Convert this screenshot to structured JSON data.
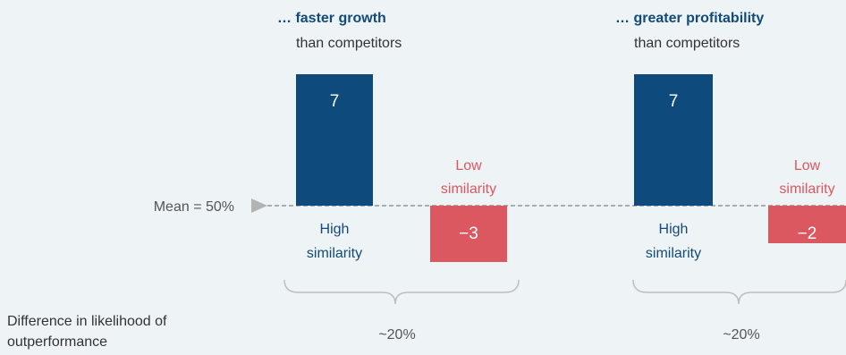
{
  "chart_data": [
    {
      "type": "bar",
      "title": "… faster growth",
      "subtitle": "than competitors",
      "categories": [
        "High similarity",
        "Low similarity"
      ],
      "category_lines": [
        [
          "High",
          "similarity"
        ],
        [
          "Low",
          "similarity"
        ]
      ],
      "values": [
        7,
        -3
      ],
      "value_labels": [
        "7",
        "−3"
      ],
      "bracket_label": "~20%"
    },
    {
      "type": "bar",
      "title": "… greater profitability",
      "subtitle": "than competitors",
      "categories": [
        "High similarity",
        "Low similarity"
      ],
      "category_lines": [
        [
          "High",
          "similarity"
        ],
        [
          "Low",
          "similarity"
        ]
      ],
      "values": [
        7,
        -2
      ],
      "value_labels": [
        "7",
        "−2"
      ],
      "bracket_label": "~20%"
    }
  ],
  "baseline_label": "Mean = 50%",
  "row_label_lines": [
    "Difference in likelihood of",
    "outperformance"
  ],
  "colors": {
    "high": "#0f4a7c",
    "low": "#dc5860",
    "low_text": "#dc5860",
    "title": "#124a79",
    "text": "#333333",
    "muted": "#555555",
    "background": "#eef3f6",
    "bracket": "#bdbdbd"
  }
}
